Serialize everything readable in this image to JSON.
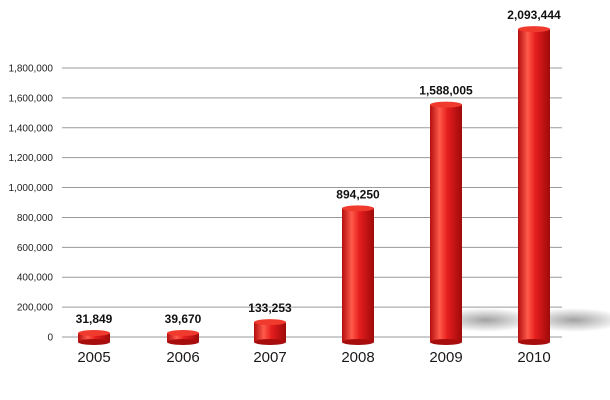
{
  "chart_data": {
    "type": "bar",
    "categories": [
      "2005",
      "2006",
      "2007",
      "2008",
      "2009",
      "2010"
    ],
    "values": [
      31849,
      39670,
      133253,
      894250,
      1588005,
      2093444
    ],
    "data_labels": [
      "31,849",
      "39,670",
      "133,253",
      "894,250",
      "1,588,005",
      "2,093,444"
    ],
    "y_ticks": [
      0,
      200000,
      400000,
      600000,
      800000,
      1000000,
      1200000,
      1400000,
      1600000,
      1800000
    ],
    "y_tick_labels": [
      "0",
      "200,000",
      "400,000",
      "600,000",
      "800,000",
      "1,000,000",
      "1,200,000",
      "1,400,000",
      "1,600,000",
      "1,800,000"
    ],
    "ylim": [
      0,
      1800000
    ],
    "grid": true,
    "bar_color": "#e11b1b",
    "bar_highlight": "#ff6a5a",
    "bar_shadow": "#9e0a0a"
  }
}
